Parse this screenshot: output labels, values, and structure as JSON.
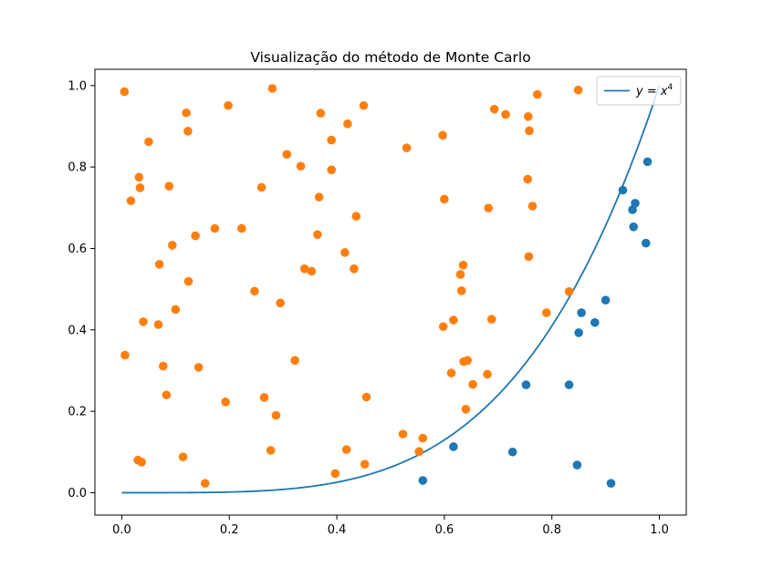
{
  "chart_data": {
    "type": "scatter",
    "title": "Visualização do método de Monte Carlo",
    "xlabel": "",
    "ylabel": "",
    "xlim": [
      -0.05,
      1.05
    ],
    "ylim": [
      -0.055,
      1.04
    ],
    "xticks": [
      0.0,
      0.2,
      0.4,
      0.6,
      0.8,
      1.0
    ],
    "yticks": [
      0.0,
      0.2,
      0.4,
      0.6,
      0.8,
      1.0
    ],
    "xtick_labels": [
      "0.0",
      "0.2",
      "0.4",
      "0.6",
      "0.8",
      "1.0"
    ],
    "ytick_labels": [
      "0.0",
      "0.2",
      "0.4",
      "0.6",
      "0.8",
      "1.0"
    ],
    "grid": false,
    "legend": {
      "position": "top-right",
      "label_base": "y = x",
      "label_exp": "4"
    },
    "curve": {
      "exponent": 4,
      "color": "#1f77b4",
      "x_range": [
        0,
        1
      ]
    },
    "series": [
      {
        "color": "#1f77b4",
        "points": [
          [
            0.56,
            0.03
          ],
          [
            0.617,
            0.113
          ],
          [
            0.727,
            0.1
          ],
          [
            0.752,
            0.265
          ],
          [
            0.832,
            0.265
          ],
          [
            0.847,
            0.068
          ],
          [
            0.85,
            0.393
          ],
          [
            0.855,
            0.442
          ],
          [
            0.88,
            0.418
          ],
          [
            0.9,
            0.473
          ],
          [
            0.91,
            0.023
          ],
          [
            0.932,
            0.743
          ],
          [
            0.95,
            0.695
          ],
          [
            0.952,
            0.653
          ],
          [
            0.955,
            0.711
          ],
          [
            0.975,
            0.613
          ],
          [
            0.978,
            0.813
          ]
        ]
      },
      {
        "color": "#ff7f0e",
        "points": [
          [
            0.005,
            0.985
          ],
          [
            0.006,
            0.338
          ],
          [
            0.017,
            0.717
          ],
          [
            0.03,
            0.08
          ],
          [
            0.032,
            0.775
          ],
          [
            0.034,
            0.749
          ],
          [
            0.037,
            0.075
          ],
          [
            0.04,
            0.42
          ],
          [
            0.05,
            0.862
          ],
          [
            0.068,
            0.413
          ],
          [
            0.07,
            0.561
          ],
          [
            0.077,
            0.311
          ],
          [
            0.083,
            0.24
          ],
          [
            0.088,
            0.753
          ],
          [
            0.094,
            0.608
          ],
          [
            0.1,
            0.45
          ],
          [
            0.114,
            0.088
          ],
          [
            0.12,
            0.933
          ],
          [
            0.123,
            0.888
          ],
          [
            0.124,
            0.519
          ],
          [
            0.137,
            0.631
          ],
          [
            0.143,
            0.308
          ],
          [
            0.155,
            0.023
          ],
          [
            0.173,
            0.649
          ],
          [
            0.193,
            0.223
          ],
          [
            0.198,
            0.951
          ],
          [
            0.223,
            0.649
          ],
          [
            0.247,
            0.495
          ],
          [
            0.26,
            0.75
          ],
          [
            0.265,
            0.234
          ],
          [
            0.277,
            0.104
          ],
          [
            0.28,
            0.993
          ],
          [
            0.287,
            0.19
          ],
          [
            0.295,
            0.466
          ],
          [
            0.307,
            0.831
          ],
          [
            0.322,
            0.325
          ],
          [
            0.333,
            0.802
          ],
          [
            0.34,
            0.55
          ],
          [
            0.353,
            0.544
          ],
          [
            0.364,
            0.634
          ],
          [
            0.367,
            0.726
          ],
          [
            0.37,
            0.932
          ],
          [
            0.39,
            0.866
          ],
          [
            0.39,
            0.793
          ],
          [
            0.397,
            0.047
          ],
          [
            0.415,
            0.59
          ],
          [
            0.418,
            0.106
          ],
          [
            0.42,
            0.906
          ],
          [
            0.432,
            0.55
          ],
          [
            0.436,
            0.679
          ],
          [
            0.45,
            0.951
          ],
          [
            0.452,
            0.07
          ],
          [
            0.455,
            0.235
          ],
          [
            0.523,
            0.144
          ],
          [
            0.53,
            0.847
          ],
          [
            0.553,
            0.101
          ],
          [
            0.56,
            0.134
          ],
          [
            0.597,
            0.878
          ],
          [
            0.598,
            0.408
          ],
          [
            0.6,
            0.721
          ],
          [
            0.613,
            0.294
          ],
          [
            0.617,
            0.424
          ],
          [
            0.63,
            0.536
          ],
          [
            0.632,
            0.496
          ],
          [
            0.635,
            0.559
          ],
          [
            0.636,
            0.322
          ],
          [
            0.64,
            0.205
          ],
          [
            0.643,
            0.325
          ],
          [
            0.653,
            0.266
          ],
          [
            0.68,
            0.291
          ],
          [
            0.682,
            0.699
          ],
          [
            0.688,
            0.426
          ],
          [
            0.693,
            0.942
          ],
          [
            0.714,
            0.929
          ],
          [
            0.755,
            0.77
          ],
          [
            0.756,
            0.924
          ],
          [
            0.757,
            0.58
          ],
          [
            0.758,
            0.889
          ],
          [
            0.764,
            0.704
          ],
          [
            0.773,
            0.978
          ],
          [
            0.79,
            0.442
          ],
          [
            0.832,
            0.494
          ],
          [
            0.849,
            0.989
          ]
        ]
      }
    ]
  }
}
